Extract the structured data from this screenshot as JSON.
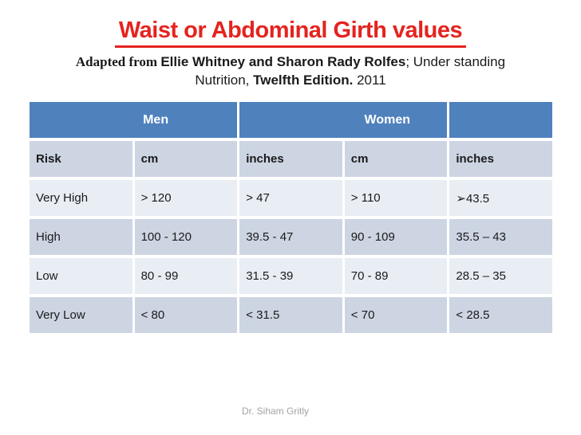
{
  "theme": {
    "background": "#ffffff",
    "title-red": "#e5231e",
    "header-blue": "#4f81bd",
    "band-dark": "#cdd5e3",
    "band-light": "#e9edf4",
    "text-dark": "#1a1a1a",
    "footer-gray": "#a3a3a3"
  },
  "slide": {
    "title": "Waist or Abdominal Girth values",
    "subtitle": {
      "adapted_from": "Adapted from ",
      "authors": "Ellie Whitney and Sharon Rady Rolfes",
      "source_rest": "; Under standing",
      "nutrition": "Nutrition, ",
      "edition": "Twelfth Edition.",
      "year": " 2011"
    },
    "footer": "Dr. Siham Gritly"
  },
  "table": {
    "group_headers": [
      {
        "label": "Men"
      },
      {
        "label": "Women"
      },
      {
        "label": ""
      }
    ],
    "columns": [
      "Risk",
      "cm",
      "inches",
      "cm",
      "inches"
    ],
    "rows": [
      {
        "risk": "Very High",
        "men_cm": "> 120",
        "men_inches": "> 47",
        "women_cm": "> 110",
        "women_inches": "➢43.5"
      },
      {
        "risk": "High",
        "men_cm": "100 - 120",
        "men_inches": "39.5 - 47",
        "women_cm": "90 - 109",
        "women_inches": "35.5 – 43"
      },
      {
        "risk": "Low",
        "men_cm": "80 - 99",
        "men_inches": "31.5 - 39",
        "women_cm": "70 - 89",
        "women_inches": "28.5 – 35"
      },
      {
        "risk": "Very Low",
        "men_cm": "< 80",
        "men_inches": "< 31.5",
        "women_cm": "< 70",
        "women_inches": "< 28.5"
      }
    ]
  }
}
